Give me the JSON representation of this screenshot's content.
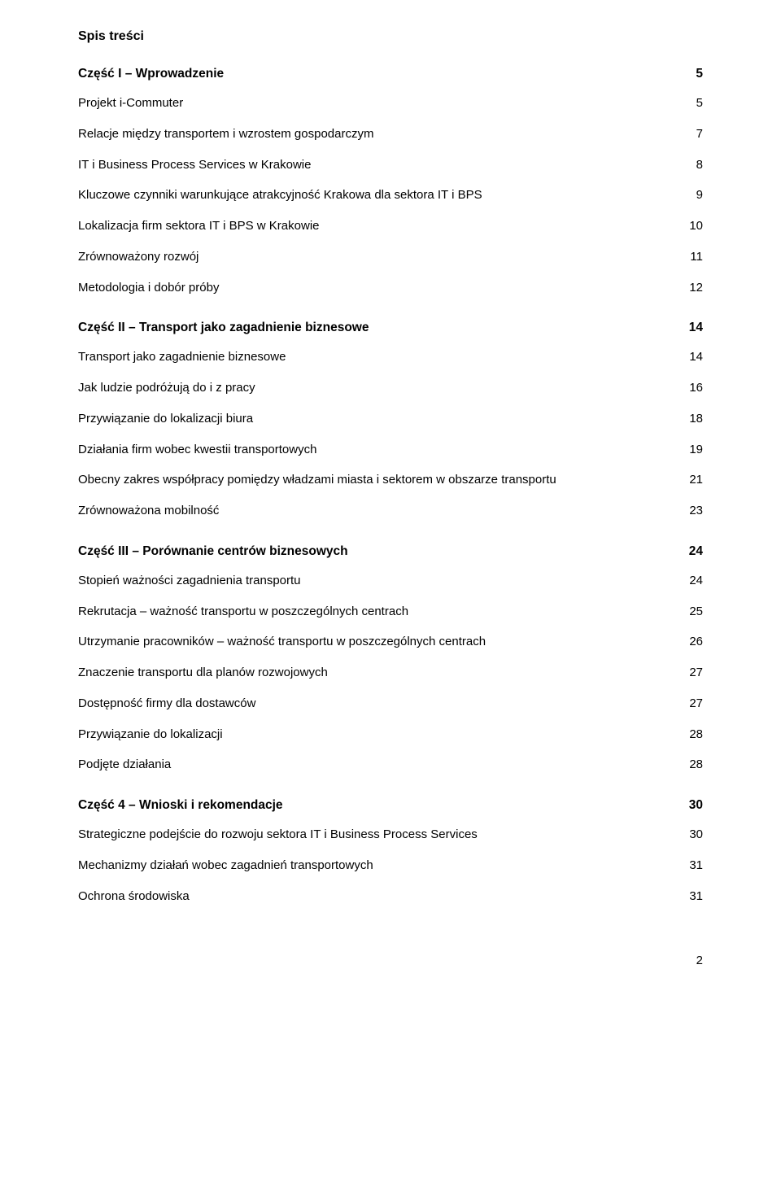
{
  "title": "Spis treści",
  "sections": [
    {
      "heading": "Część I – Wprowadzenie",
      "page": "5",
      "items": [
        {
          "label": "Projekt i-Commuter",
          "page": "5"
        },
        {
          "label": "Relacje między transportem i wzrostem gospodarczym",
          "page": "7"
        },
        {
          "label": "IT i Business Process Services w Krakowie",
          "page": "8"
        },
        {
          "label": "Kluczowe czynniki warunkujące atrakcyjność Krakowa dla sektora IT i BPS",
          "page": "9"
        },
        {
          "label": "Lokalizacja firm sektora IT i BPS w Krakowie",
          "page": "10"
        },
        {
          "label": "Zrównoważony rozwój",
          "page": "11"
        },
        {
          "label": "Metodologia i dobór próby",
          "page": "12"
        }
      ]
    },
    {
      "heading": "Część II – Transport jako zagadnienie biznesowe",
      "page": "14",
      "items": [
        {
          "label": "Transport jako zagadnienie biznesowe",
          "page": "14"
        },
        {
          "label": "Jak ludzie podróżują do i z pracy",
          "page": "16"
        },
        {
          "label": "Przywiązanie do lokalizacji biura",
          "page": "18"
        },
        {
          "label": "Działania firm wobec kwestii transportowych",
          "page": "19"
        },
        {
          "label": "Obecny zakres współpracy pomiędzy władzami miasta i sektorem w obszarze transportu",
          "page": "21"
        },
        {
          "label": "Zrównoważona mobilność",
          "page": "23"
        }
      ]
    },
    {
      "heading": "Część III – Porównanie centrów biznesowych",
      "page": "24",
      "items": [
        {
          "label": "Stopień ważności zagadnienia transportu",
          "page": "24"
        },
        {
          "label": "Rekrutacja – ważność transportu w poszczególnych centrach",
          "page": "25"
        },
        {
          "label": "Utrzymanie pracowników – ważność transportu w poszczególnych centrach",
          "page": "26"
        },
        {
          "label": "Znaczenie transportu dla planów rozwojowych",
          "page": "27"
        },
        {
          "label": "Dostępność firmy dla dostawców",
          "page": "27"
        },
        {
          "label": "Przywiązanie do lokalizacji",
          "page": "28"
        },
        {
          "label": "Podjęte działania",
          "page": "28"
        }
      ]
    },
    {
      "heading": "Część 4 – Wnioski i rekomendacje",
      "page": "30",
      "items": [
        {
          "label": "Strategiczne podejście do rozwoju sektora IT i Business Process Services",
          "page": "30"
        },
        {
          "label": "Mechanizmy działań wobec zagadnień transportowych",
          "page": "31"
        },
        {
          "label": "Ochrona środowiska",
          "page": "31"
        }
      ]
    }
  ],
  "footerPage": "2"
}
